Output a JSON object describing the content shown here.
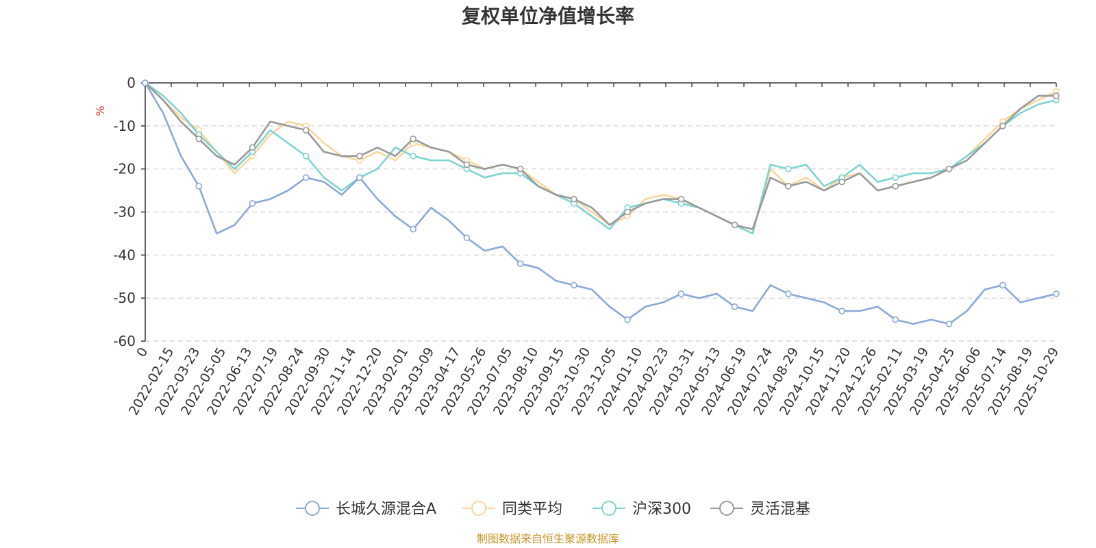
{
  "chart_data": {
    "type": "line",
    "title": "复权单位净值增长率",
    "ylabel": "%",
    "ylim": [
      -60,
      0
    ],
    "yticks": [
      0,
      -10,
      -20,
      -30,
      -40,
      -50,
      -60
    ],
    "x_tick_labels": [
      "0",
      "2022-02-15",
      "2022-03-23",
      "2022-05-05",
      "2022-06-13",
      "2022-07-19",
      "2022-08-24",
      "2022-09-30",
      "2022-11-14",
      "2022-12-20",
      "2023-02-01",
      "2023-03-09",
      "2023-04-17",
      "2023-05-26",
      "2023-07-05",
      "2023-08-10",
      "2023-09-15",
      "2023-10-30",
      "2023-12-05",
      "2024-01-10",
      "2024-02-23",
      "2024-03-31",
      "2024-05-13",
      "2024-06-19",
      "2024-07-24",
      "2024-08-29",
      "2024-10-15",
      "2024-11-20",
      "2024-12-26",
      "2025-02-11",
      "2025-03-19",
      "2025-04-25",
      "2025-06-06",
      "2025-07-14",
      "2025-08-19",
      "2025-10-29"
    ],
    "grid": "y-dashed",
    "legend_position": "bottom",
    "series": [
      {
        "name": "长城久源混合A",
        "color": "#8aa8d8",
        "values": [
          0,
          -7,
          -17,
          -24,
          -35,
          -33,
          -28,
          -27,
          -25,
          -22,
          -23,
          -26,
          -22,
          -27,
          -31,
          -34,
          -29,
          -32,
          -36,
          -39,
          -38,
          -42,
          -43,
          -46,
          -47,
          -48,
          -52,
          -55,
          -52,
          -51,
          -49,
          -50,
          -49,
          -52,
          -53,
          -47,
          -49,
          -50,
          -51,
          -53,
          -53,
          -52,
          -55,
          -56,
          -55,
          -56,
          -53,
          -48,
          -47,
          -51,
          -50,
          -49
        ]
      },
      {
        "name": "同类平均",
        "color": "#f8d79a",
        "values": [
          0,
          -4,
          -8,
          -11,
          -16,
          -21,
          -17,
          -12,
          -9,
          -10,
          -14,
          -17,
          -18,
          -16,
          -18,
          -14,
          -15,
          -16,
          -18,
          -20,
          -19,
          -20,
          -23,
          -26,
          -27,
          -30,
          -33,
          -31,
          -27,
          -26,
          -27,
          -29,
          -31,
          -33,
          -35,
          -20,
          -24,
          -22,
          -25,
          -22,
          -21,
          -25,
          -24,
          -23,
          -22,
          -20,
          -17,
          -13,
          -9,
          -6,
          -4,
          -2
        ]
      },
      {
        "name": "沪深300",
        "color": "#7ed3d3",
        "values": [
          0,
          -3,
          -7,
          -12,
          -16,
          -20,
          -16,
          -11,
          -14,
          -17,
          -22,
          -25,
          -22,
          -20,
          -15,
          -17,
          -18,
          -18,
          -20,
          -22,
          -21,
          -21,
          -24,
          -26,
          -28,
          -31,
          -34,
          -29,
          -28,
          -27,
          -28,
          -29,
          -31,
          -33,
          -35,
          -19,
          -20,
          -19,
          -24,
          -22,
          -19,
          -23,
          -22,
          -21,
          -21,
          -20,
          -17,
          -14,
          -10,
          -7,
          -5,
          -4
        ]
      },
      {
        "name": "灵活混基",
        "color": "#999999",
        "values": [
          0,
          -4,
          -9,
          -13,
          -17,
          -19,
          -15,
          -9,
          -10,
          -11,
          -16,
          -17,
          -17,
          -15,
          -17,
          -13,
          -15,
          -16,
          -19,
          -20,
          -19,
          -20,
          -24,
          -26,
          -27,
          -29,
          -33,
          -30,
          -28,
          -27,
          -27,
          -29,
          -31,
          -33,
          -34,
          -22,
          -24,
          -23,
          -25,
          -23,
          -21,
          -25,
          -24,
          -23,
          -22,
          -20,
          -18,
          -14,
          -10,
          -6,
          -3,
          -3
        ]
      }
    ]
  },
  "source_text": "制图数据来自恒生聚源数据库"
}
